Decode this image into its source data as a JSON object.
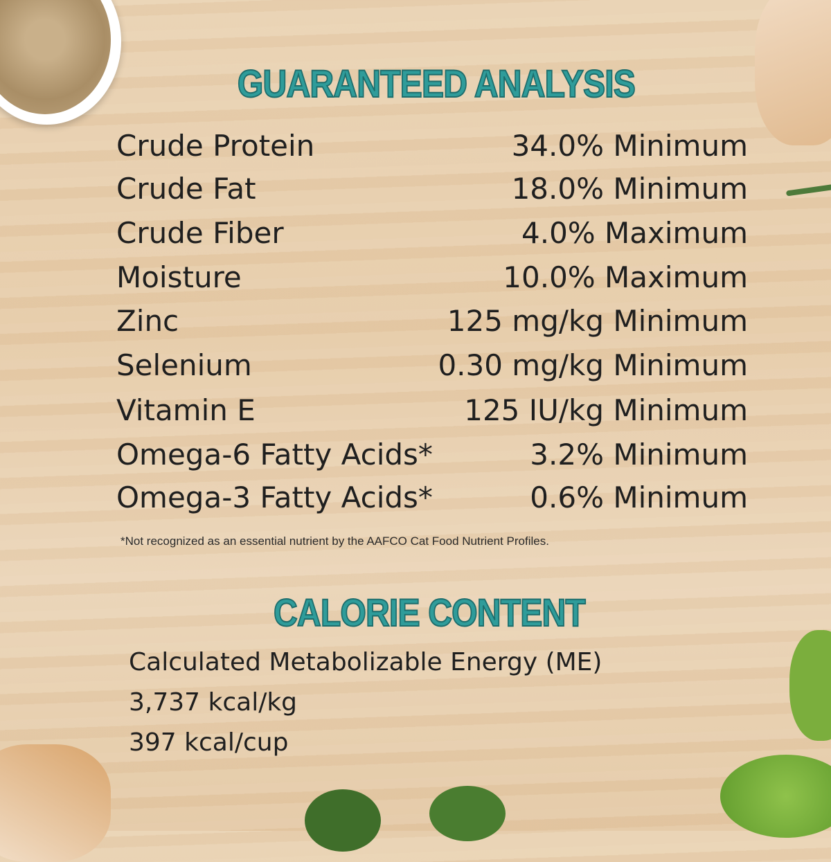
{
  "guaranteed_analysis": {
    "title": "GUARANTEED ANALYSIS",
    "rows": [
      {
        "label": "Crude Protein",
        "value": "34.0% Minimum"
      },
      {
        "label": "Crude Fat",
        "value": "18.0% Minimum"
      },
      {
        "label": "Crude Fiber",
        "value": "4.0% Maximum"
      },
      {
        "label": "Moisture",
        "value": "10.0% Maximum"
      },
      {
        "label": "Zinc",
        "value": "125 mg/kg Minimum"
      },
      {
        "label": "Selenium",
        "value": "0.30 mg/kg Minimum"
      },
      {
        "label": "Vitamin E",
        "value": "125 IU/kg Minimum"
      },
      {
        "label": "Omega-6 Fatty Acids*",
        "value": "3.2% Minimum"
      },
      {
        "label": "Omega-3 Fatty Acids*",
        "value": "0.6% Minimum"
      }
    ],
    "footnote": "*Not recognized as an essential nutrient by the AAFCO Cat Food Nutrient Profiles."
  },
  "calorie_content": {
    "title": "CALORIE CONTENT",
    "lines": [
      "Calculated Metabolizable Energy (ME)",
      "3,737 kcal/kg",
      "397 kcal/cup"
    ]
  },
  "colors": {
    "heading": "#2f9c9a",
    "text": "#1f1f1f",
    "background": "#e8cfae"
  }
}
